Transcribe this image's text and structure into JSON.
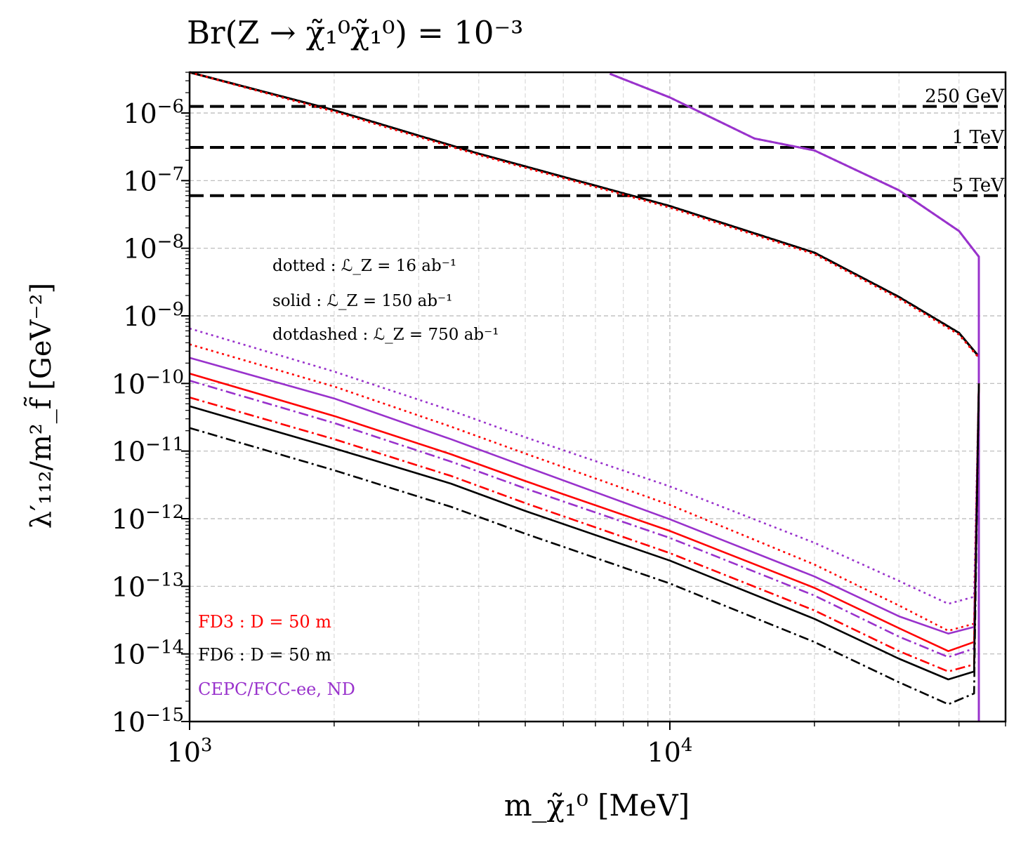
{
  "chart_data": {
    "type": "line",
    "title": "Br(Z → χ̃₁⁰χ̃₁⁰) = 10⁻³",
    "xlabel": "m_χ̃₁⁰ [MeV]",
    "ylabel": "λ′₁₁₂/m²_f̃ [GeV⁻²]",
    "xscale": "log",
    "yscale": "log",
    "xlim": [
      1000,
      50000
    ],
    "ylim": [
      1e-15,
      4e-06
    ],
    "x_ticks": [
      {
        "value": 1000,
        "label": "10³"
      },
      {
        "value": 10000,
        "label": "10⁴"
      }
    ],
    "y_ticks": [
      {
        "value": 1e-15,
        "label": "10⁻¹⁵"
      },
      {
        "value": 1e-14,
        "label": "10⁻¹⁴"
      },
      {
        "value": 1e-13,
        "label": "10⁻¹³"
      },
      {
        "value": 1e-12,
        "label": "10⁻¹²"
      },
      {
        "value": 1e-11,
        "label": "10⁻¹¹"
      },
      {
        "value": 1e-10,
        "label": "10⁻¹⁰"
      },
      {
        "value": 1e-09,
        "label": "10⁻⁹"
      },
      {
        "value": 1e-08,
        "label": "10⁻⁸"
      },
      {
        "value": 1e-07,
        "label": "10⁻⁷"
      },
      {
        "value": 1e-06,
        "label": "10⁻⁶"
      }
    ],
    "grid": true,
    "hlines": [
      {
        "label": "250 GeV",
        "y": 1.25e-06
      },
      {
        "label": "1 TeV",
        "y": 3.1e-07
      },
      {
        "label": "5 TeV",
        "y": 6e-08
      }
    ],
    "annotations": {
      "styles": [
        "dotted : ℒ_Z =  16 ab⁻¹",
        "solid : ℒ_Z = 150 ab⁻¹",
        "dotdashed : ℒ_Z = 750 ab⁻¹"
      ],
      "detectors": [
        {
          "text": "FD3 : D = 50 m",
          "color": "#ff0000"
        },
        {
          "text": "FD6 : D = 50 m",
          "color": "#000000"
        },
        {
          "text": "CEPC/FCC-ee, ND",
          "color": "#9932cc"
        }
      ]
    },
    "series": [
      {
        "name": "FD6 upper 16/ab",
        "color": "#000000",
        "style": "dotted",
        "kind": "upper",
        "x": [
          1000,
          2000,
          4000,
          8000,
          10000,
          20000,
          30000,
          40000,
          44000
        ],
        "y": [
          7.5e-06,
          1.1e-06,
          2.5e-07,
          6.5e-08,
          4.2e-08,
          8.6e-09,
          1.9e-09,
          5.6e-10,
          2.5e-10
        ]
      },
      {
        "name": "FD6 upper 150/ab",
        "color": "#000000",
        "style": "solid",
        "kind": "upper",
        "x": [
          1000,
          2000,
          4000,
          8000,
          10000,
          20000,
          30000,
          40000,
          44000
        ],
        "y": [
          7.5e-06,
          1.1e-06,
          2.5e-07,
          6.5e-08,
          4.2e-08,
          8.6e-09,
          1.9e-09,
          5.6e-10,
          2.5e-10
        ]
      },
      {
        "name": "FD6 upper 750/ab",
        "color": "#000000",
        "style": "dashdot",
        "kind": "upper",
        "x": [
          1000,
          2000,
          4000,
          8000,
          10000,
          20000,
          30000,
          40000,
          44000
        ],
        "y": [
          7.5e-06,
          1.1e-06,
          2.5e-07,
          6.5e-08,
          4.2e-08,
          8.6e-09,
          1.9e-09,
          5.6e-10,
          2.5e-10
        ]
      },
      {
        "name": "FD3 upper 16/ab",
        "color": "#ff0000",
        "style": "dotted",
        "kind": "upper",
        "x": [
          1000,
          2000,
          4000,
          8000,
          10000,
          20000,
          30000,
          40000,
          44000
        ],
        "y": [
          7.2e-06,
          1.05e-06,
          2.4e-07,
          6.2e-08,
          4e-08,
          8.2e-09,
          1.8e-09,
          5.3e-10,
          2.4e-10
        ]
      },
      {
        "name": "ND upper 16/ab",
        "color": "#9932cc",
        "style": "dotted",
        "kind": "upper",
        "x": [
          7500,
          10000,
          15000,
          20000,
          30000,
          40000,
          44000
        ],
        "y": [
          3.8e-06,
          1.7e-06,
          4.2e-07,
          2.8e-07,
          7.2e-08,
          1.8e-08,
          7.5e-09
        ]
      },
      {
        "name": "ND upper 150/ab",
        "color": "#9932cc",
        "style": "solid",
        "kind": "upper",
        "x": [
          7500,
          10000,
          15000,
          20000,
          30000,
          40000,
          44000
        ],
        "y": [
          3.8e-06,
          1.7e-06,
          4.2e-07,
          2.8e-07,
          7.2e-08,
          1.8e-08,
          7.5e-09
        ]
      },
      {
        "name": "ND lower 16/ab",
        "color": "#9932cc",
        "style": "dotted",
        "kind": "lower",
        "x": [
          1000,
          2000,
          3500,
          5000,
          10000,
          20000,
          30000,
          38000,
          43000
        ],
        "y": [
          6.5e-10,
          1.5e-10,
          4e-11,
          1.6e-11,
          3e-12,
          4.4e-13,
          1.2e-13,
          5.5e-14,
          7e-14
        ]
      },
      {
        "name": "FD3 lower 16/ab",
        "color": "#ff0000",
        "style": "dotted",
        "kind": "lower",
        "x": [
          1000,
          2000,
          3500,
          5000,
          10000,
          20000,
          30000,
          38000,
          43000
        ],
        "y": [
          3.8e-10,
          9e-11,
          2.3e-11,
          9.2e-12,
          1.6e-12,
          2.1e-13,
          5.2e-14,
          2.2e-14,
          2.8e-14
        ]
      },
      {
        "name": "ND lower 150/ab",
        "color": "#9932cc",
        "style": "solid",
        "kind": "lower",
        "x": [
          1000,
          2000,
          3500,
          5000,
          10000,
          20000,
          30000,
          38000,
          43000
        ],
        "y": [
          2.4e-10,
          6e-11,
          1.5e-11,
          5.9e-12,
          9.8e-13,
          1.4e-13,
          3.6e-14,
          2e-14,
          2.5e-14
        ]
      },
      {
        "name": "FD3 lower 150/ab",
        "color": "#ff0000",
        "style": "solid",
        "kind": "lower",
        "x": [
          1000,
          2000,
          3500,
          5000,
          10000,
          20000,
          30000,
          38000,
          43000
        ],
        "y": [
          1.4e-10,
          3.3e-11,
          9e-12,
          3.6e-12,
          6.6e-13,
          9.5e-14,
          2.4e-14,
          1.1e-14,
          1.5e-14
        ]
      },
      {
        "name": "ND lower 750/ab",
        "color": "#9932cc",
        "style": "dashdot",
        "kind": "lower",
        "x": [
          1000,
          2000,
          3500,
          5000,
          10000,
          20000,
          30000,
          38000,
          43000
        ],
        "y": [
          1.1e-10,
          2.6e-11,
          7e-12,
          2.8e-12,
          5.2e-13,
          7.3e-14,
          1.8e-14,
          9e-15,
          1.2e-14
        ]
      },
      {
        "name": "FD3 lower 750/ab",
        "color": "#ff0000",
        "style": "dashdot",
        "kind": "lower",
        "x": [
          1000,
          2000,
          3500,
          5000,
          10000,
          20000,
          30000,
          38000,
          43000
        ],
        "y": [
          6.2e-11,
          1.5e-11,
          4.3e-12,
          1.7e-12,
          3.1e-13,
          4.4e-14,
          1.1e-14,
          5.5e-15,
          7e-15
        ]
      },
      {
        "name": "FD6 lower 150/ab",
        "color": "#000000",
        "style": "solid",
        "kind": "lower",
        "x": [
          1000,
          2000,
          3500,
          5000,
          10000,
          20000,
          30000,
          38000,
          43000
        ],
        "y": [
          4.6e-11,
          1.1e-11,
          3.3e-12,
          1.3e-12,
          2.4e-13,
          3.3e-14,
          8.5e-15,
          4.2e-15,
          5.5e-15
        ]
      },
      {
        "name": "FD6 lower 750/ab",
        "color": "#000000",
        "style": "dashdot",
        "kind": "lower",
        "x": [
          1000,
          2000,
          3500,
          5000,
          10000,
          20000,
          30000,
          38000,
          43000
        ],
        "y": [
          2.2e-11,
          5.2e-12,
          1.5e-12,
          6e-13,
          1.1e-13,
          1.5e-14,
          3.8e-15,
          1.8e-15,
          2.6e-15
        ]
      }
    ]
  }
}
